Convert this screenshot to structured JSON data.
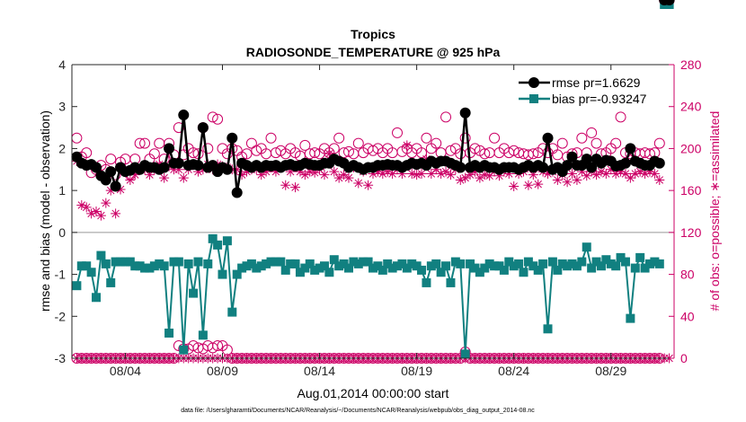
{
  "chart_data": {
    "type": "line",
    "title": "Tropics",
    "subtitle": "RADIOSONDE_TEMPERATURE @ 925 hPa",
    "xlabel": "Aug.01,2014 00:00:00 start",
    "ylabel_left": "rmse and bias (model - observation)",
    "ylabel_right": "# of obs: o=possible; ∗=assimilated",
    "footnote": "data file: /Users/gharamti/Documents/NCAR/Reanalysis/~/Documents/NCAR/Reanalysis/webpub/obs_diag_output_2014-08.nc",
    "xlim": [
      0.75,
      31.75
    ],
    "ylim_left": [
      -3,
      4
    ],
    "ylim_right": [
      0,
      280
    ],
    "x_ticks": [
      3.5,
      8.5,
      13.5,
      18.5,
      23.5,
      28.5
    ],
    "x_tick_labels": [
      "08/04",
      "08/09",
      "08/14",
      "08/19",
      "08/24",
      "08/29"
    ],
    "y_ticks_left": [
      -3,
      -2,
      -1,
      0,
      1,
      2,
      3,
      4
    ],
    "y_ticks_right": [
      0,
      40,
      80,
      120,
      160,
      200,
      240,
      280
    ],
    "colors": {
      "rmse": "#000000",
      "bias": "#118080",
      "obs": "#cc0066",
      "zero": "#999999"
    },
    "legend": {
      "position": "top-right",
      "rmse_label": "rmse pr=1.6629",
      "bias_label": "bias pr=-0.93247"
    },
    "x": [
      1.0,
      1.25,
      1.5,
      1.75,
      2.0,
      2.25,
      2.5,
      2.75,
      3.0,
      3.25,
      3.5,
      3.75,
      4.0,
      4.25,
      4.5,
      4.75,
      5.0,
      5.25,
      5.5,
      5.75,
      6.0,
      6.25,
      6.5,
      6.75,
      7.0,
      7.25,
      7.5,
      7.75,
      8.0,
      8.25,
      8.5,
      8.75,
      9.0,
      9.25,
      9.5,
      9.75,
      10.0,
      10.25,
      10.5,
      10.75,
      11.0,
      11.25,
      11.5,
      11.75,
      12.0,
      12.25,
      12.5,
      12.75,
      13.0,
      13.25,
      13.5,
      13.75,
      14.0,
      14.25,
      14.5,
      14.75,
      15.0,
      15.25,
      15.5,
      15.75,
      16.0,
      16.25,
      16.5,
      16.75,
      17.0,
      17.25,
      17.5,
      17.75,
      18.0,
      18.25,
      18.5,
      18.75,
      19.0,
      19.25,
      19.5,
      19.75,
      20.0,
      20.25,
      20.5,
      20.75,
      21.0,
      21.25,
      21.5,
      21.75,
      22.0,
      22.25,
      22.5,
      22.75,
      23.0,
      23.25,
      23.5,
      23.75,
      24.0,
      24.25,
      24.5,
      24.75,
      25.0,
      25.25,
      25.5,
      25.75,
      26.0,
      26.25,
      26.5,
      26.75,
      27.0,
      27.25,
      27.5,
      27.75,
      28.0,
      28.25,
      28.5,
      28.75,
      29.0,
      29.25,
      29.5,
      29.75,
      30.0,
      30.25,
      30.5,
      30.75,
      31.0,
      31.25,
      31.5
    ],
    "rmse": [
      1.8,
      1.65,
      1.6,
      1.62,
      1.55,
      1.35,
      1.25,
      1.45,
      1.1,
      1.55,
      1.45,
      1.48,
      1.55,
      1.5,
      1.6,
      1.55,
      1.55,
      1.5,
      1.55,
      2.0,
      1.65,
      1.65,
      2.8,
      1.6,
      1.62,
      1.6,
      2.5,
      1.55,
      1.6,
      1.45,
      1.55,
      1.5,
      2.25,
      0.95,
      1.65,
      1.6,
      1.55,
      1.6,
      1.55,
      1.6,
      1.58,
      1.6,
      1.55,
      1.6,
      1.62,
      1.58,
      1.6,
      1.65,
      1.62,
      1.6,
      1.6,
      1.65,
      1.65,
      1.75,
      1.7,
      1.65,
      1.55,
      1.6,
      1.55,
      1.5,
      1.55,
      1.55,
      1.6,
      1.6,
      1.62,
      1.6,
      1.6,
      1.55,
      1.6,
      1.65,
      1.62,
      1.65,
      1.6,
      1.7,
      1.65,
      1.7,
      1.7,
      1.65,
      1.6,
      1.55,
      2.85,
      1.55,
      1.6,
      1.55,
      1.6,
      1.55,
      1.55,
      1.5,
      1.55,
      1.55,
      1.55,
      1.5,
      1.55,
      1.6,
      1.55,
      1.6,
      1.55,
      2.25,
      1.5,
      1.55,
      1.45,
      1.6,
      1.8,
      1.6,
      1.6,
      1.75,
      1.55,
      1.75,
      1.65,
      1.72,
      1.7,
      1.58,
      1.6,
      1.65,
      2.0,
      1.7,
      1.65,
      1.6,
      1.6,
      1.7,
      1.65
    ],
    "bias": [
      -1.27,
      -0.8,
      -0.8,
      -0.95,
      -1.55,
      -0.55,
      -0.75,
      -1.2,
      -0.7,
      -0.7,
      -0.7,
      -0.7,
      -0.8,
      -0.8,
      -0.85,
      -0.85,
      -0.8,
      -0.75,
      -0.8,
      -2.4,
      -0.7,
      -0.7,
      -2.8,
      -0.75,
      -1.45,
      -0.7,
      -2.45,
      -0.75,
      -0.15,
      -0.3,
      -1.0,
      -0.2,
      -1.9,
      -1.0,
      -0.85,
      -0.8,
      -0.75,
      -0.85,
      -0.8,
      -0.75,
      -0.7,
      -0.7,
      -0.7,
      -0.9,
      -0.75,
      -0.75,
      -0.95,
      -0.85,
      -0.75,
      -0.9,
      -0.85,
      -0.8,
      -0.95,
      -0.65,
      -0.8,
      -0.75,
      -0.85,
      -0.7,
      -0.75,
      -0.7,
      -0.7,
      -0.85,
      -0.8,
      -0.9,
      -0.75,
      -0.85,
      -0.8,
      -0.75,
      -0.85,
      -0.75,
      -0.8,
      -0.9,
      -1.2,
      -0.8,
      -0.75,
      -0.95,
      -0.8,
      -1.2,
      -0.7,
      -0.75,
      -2.9,
      -0.75,
      -0.85,
      -0.95,
      -0.85,
      -0.75,
      -0.8,
      -0.8,
      -0.9,
      -0.7,
      -0.8,
      -0.75,
      -0.95,
      -0.7,
      -0.8,
      -0.9,
      -0.75,
      -2.3,
      -0.7,
      -0.9,
      -0.75,
      -0.8,
      -0.75,
      -0.8,
      -0.7,
      -0.35,
      -0.85,
      -0.7,
      -0.8,
      -0.65,
      -0.75,
      -0.8,
      -0.6,
      -0.7,
      -2.05,
      -0.85,
      -0.6,
      -0.85,
      -0.75,
      -0.7,
      -0.75
    ],
    "obs_possible": [
      210,
      192,
      196,
      177,
      180,
      184,
      180,
      190,
      175,
      187,
      190,
      175,
      190,
      205,
      205,
      190,
      195,
      205,
      190,
      205,
      194,
      220,
      194,
      200,
      196,
      195,
      220,
      200,
      230,
      228,
      200,
      195,
      200,
      198,
      192,
      195,
      205,
      198,
      200,
      195,
      210,
      196,
      198,
      195,
      200,
      196,
      193,
      203,
      195,
      196,
      195,
      200,
      196,
      200,
      210,
      196,
      197,
      195,
      205,
      196,
      200,
      198,
      200,
      196,
      200,
      196,
      215,
      197,
      200,
      196,
      200,
      196,
      210,
      200,
      205,
      196,
      230,
      198,
      200,
      195,
      210,
      196,
      200,
      198,
      195,
      196,
      210,
      196,
      200,
      196,
      198,
      196,
      195,
      194,
      195,
      196,
      200,
      196,
      200,
      194,
      205,
      192,
      195,
      196,
      210,
      196,
      215,
      205,
      195,
      196,
      200,
      205,
      230,
      196,
      195,
      196,
      195,
      196,
      195,
      196,
      205
    ],
    "obs_assimilated": [
      188,
      146,
      144,
      138,
      140,
      136,
      148,
      160,
      138,
      161,
      180,
      170,
      175,
      180,
      180,
      175,
      180,
      185,
      172,
      183,
      180,
      180,
      172,
      180,
      185,
      178,
      180,
      185,
      180,
      185,
      183,
      182,
      180,
      180,
      175,
      178,
      180,
      180,
      175,
      178,
      182,
      178,
      182,
      165,
      178,
      163,
      178,
      175,
      178,
      177,
      180,
      175,
      195,
      178,
      172,
      175,
      172,
      182,
      167,
      178,
      165,
      176,
      178,
      176,
      178,
      176,
      180,
      176,
      203,
      176,
      175,
      176,
      190,
      176,
      180,
      176,
      178,
      175,
      180,
      170,
      172,
      175,
      178,
      172,
      175,
      174,
      178,
      174,
      178,
      176,
      164,
      176,
      178,
      165,
      175,
      166,
      178,
      176,
      178,
      170,
      175,
      168,
      176,
      170,
      178,
      174,
      178,
      175,
      178,
      176,
      180,
      176,
      178,
      176,
      172,
      176,
      178,
      176,
      178,
      176,
      170
    ],
    "obs_low_possible": [
      0,
      0,
      0,
      0,
      0,
      0,
      0,
      0,
      0,
      0,
      0,
      0,
      0,
      0,
      0,
      0,
      0,
      0,
      0,
      0,
      0,
      12,
      9,
      9,
      12,
      10,
      9,
      12,
      10,
      12,
      12,
      8,
      0,
      0,
      0,
      0,
      0,
      0,
      0,
      0,
      0,
      0,
      0,
      0,
      0,
      0,
      0,
      0,
      0,
      0,
      0,
      0,
      0,
      0,
      0,
      0,
      0,
      0,
      0,
      0,
      0,
      0,
      0,
      0,
      0,
      0,
      0,
      0,
      0,
      0,
      0,
      0,
      0,
      0,
      0,
      0,
      0,
      0,
      0,
      0,
      6,
      0,
      0,
      0,
      0,
      0,
      0,
      0,
      0,
      0,
      0,
      0,
      0,
      0,
      0,
      0,
      0,
      0,
      0,
      0,
      0,
      0,
      0,
      0,
      0,
      0,
      0,
      0,
      0,
      0,
      0,
      0,
      0,
      0,
      0,
      0,
      0,
      0,
      0,
      0,
      0
    ]
  }
}
